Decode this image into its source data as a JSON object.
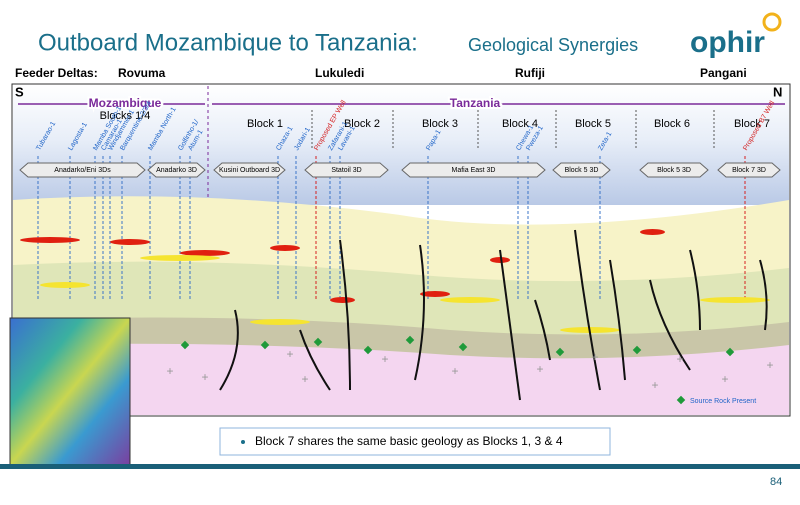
{
  "header": {
    "title": "Outboard Mozambique to Tanzania:",
    "subtitle": "Geological Synergies",
    "logo": "ophir"
  },
  "feeder_deltas": {
    "label": "Feeder Deltas:",
    "items": [
      "Rovuma",
      "Lukuledi",
      "Rufiji",
      "Pangani"
    ]
  },
  "section": {
    "south": "S",
    "north": "N",
    "countries": [
      "Mozambique",
      "Tanzania"
    ],
    "blocks": [
      "Blocks 1/4",
      "Block 1",
      "Block 2",
      "Block 3",
      "Block 4",
      "Block 5",
      "Block 6",
      "Block 7"
    ],
    "wells": [
      "Tubarao-1",
      "Lagosta-1",
      "Mamba South-1",
      "Camarao-1",
      "Windjammer-1",
      "Barquentine-2/3/4",
      "Mamba North-1",
      "Golfinho-1/",
      "Atum-1",
      "Chaza-1",
      "Jodari-1",
      "Proposed EP Well",
      "Zafarani-1",
      "Lavani-1",
      "Papa-1",
      "Chewa-1",
      "Pweza-1",
      "Zeta-1",
      "Proposed B7 Well"
    ],
    "surveys": [
      "Anadarko/Eni 3Ds",
      "Anadarko 3D",
      "Kusini Outboard 3D",
      "Statoil 3D",
      "Mafia East 3D",
      "Block 5 3D",
      "Block 5 3D",
      "Block 7 3D"
    ],
    "legend": "Source Rock Present"
  },
  "callout": "Block 7 shares the same basic geology as Blocks 1, 3 & 4",
  "page_number": "84"
}
